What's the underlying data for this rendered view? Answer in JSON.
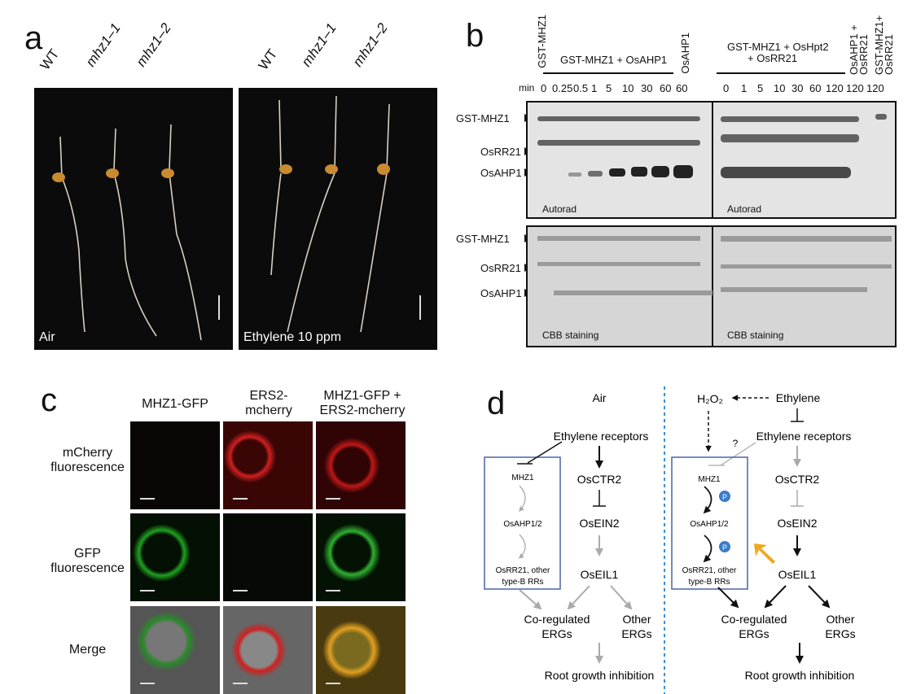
{
  "panel_a": {
    "label": "a",
    "genotypes_left": [
      "WT",
      "mhz1–1",
      "mhz1–2"
    ],
    "genotypes_right": [
      "WT",
      "mhz1–1",
      "mhz1–2"
    ],
    "condition_left": "Air",
    "condition_right": "Ethylene 10 ppm"
  },
  "panel_b": {
    "label": "b",
    "lane_headers": {
      "gst_mhz1": "GST-MHZ1",
      "group1": "GST-MHZ1 + OsAHP1",
      "osahp1": "OsAHP1",
      "group2_line1": "GST-MHZ1 + OsHpt2",
      "group2_line2": "+ OsRR21",
      "osahp1_osrr21": "OsAHP1 + OsRR21",
      "gst_mhz1_osrr21": "GST-MHZ1+ OsRR21"
    },
    "min_label": "min",
    "times_left": [
      "0",
      "0.25",
      "0.5",
      "1",
      "5",
      "10",
      "30",
      "60",
      "60"
    ],
    "times_right": [
      "0",
      "1",
      "5",
      "10",
      "30",
      "60",
      "120",
      "120",
      "120"
    ],
    "band_labels": [
      "GST-MHZ1",
      "OsRR21",
      "OsAHP1"
    ],
    "autorad_label": "Autorad",
    "cbb_label": "CBB staining"
  },
  "panel_c": {
    "label": "c",
    "columns": [
      "MHZ1-GFP",
      "ERS2-\nmcherry",
      "MHZ1-GFP +\nERS2-mcherry"
    ],
    "rows": [
      "mCherry\nfluorescence",
      "GFP\nfluorescence",
      "Merge"
    ]
  },
  "panel_d": {
    "label": "d",
    "air": {
      "title": "Air",
      "receptors": "Ethylene receptors",
      "mhz1": "MHZ1",
      "osahp": "OsAHP1/2",
      "osrr": "OsRR21, other",
      "osrr2": "type-B RRs",
      "ctr2": "OsCTR2",
      "ein2": "OsEIN2",
      "eil1": "OsEIL1",
      "coreg1": "Co-regulated",
      "coreg2": "ERGs",
      "other1": "Other",
      "other2": "ERGs",
      "root": "Root growth inhibition"
    },
    "eth": {
      "h2o2": "H₂O₂",
      "ethylene": "Ethylene",
      "receptors": "Ethylene receptors",
      "question": "?",
      "mhz1": "MHZ1",
      "p": "P",
      "osahp": "OsAHP1/2",
      "osrr": "OsRR21, other",
      "osrr2": "type-B RRs",
      "ctr2": "OsCTR2",
      "ein2": "OsEIN2",
      "eil1": "OsEIL1",
      "coreg1": "Co-regulated",
      "coreg2": "ERGs",
      "other1": "Other",
      "other2": "ERGs",
      "root": "Root growth inhibition"
    },
    "colors": {
      "box": "#4a64a8",
      "dashed_divider": "#3a8fd0",
      "gray_arrow": "#aaaaaa",
      "orange_arrow": "#f0a820",
      "phospho": "#3a7cc8"
    }
  }
}
